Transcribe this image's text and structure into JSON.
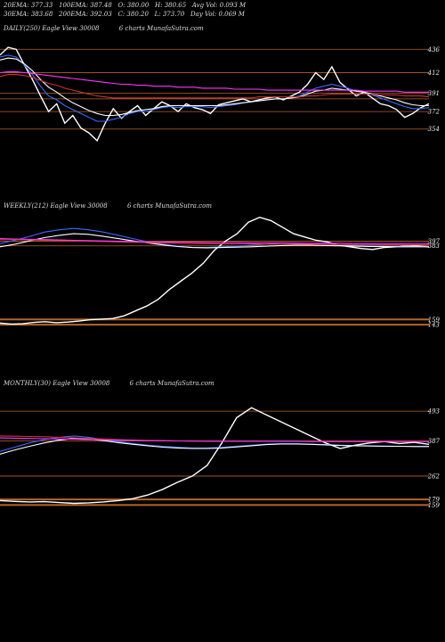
{
  "header": {
    "row1": [
      "20EMA: 377.33",
      "100EMA: 387.48",
      "O: 380.00",
      "H: 380.65",
      "Avg Vol: 0.093 M"
    ],
    "row2": [
      "30EMA: 383.68",
      "200EMA: 392.03",
      "C: 380.20",
      "L: 373.70",
      "Day Vol: 0.069 M"
    ]
  },
  "chart_data": [
    {
      "type": "line",
      "title": "DAILY(250) Eagle  View  30008",
      "watermark": "6  charts  MunafaSutra.com",
      "yticks": [
        436,
        412,
        391,
        372,
        354
      ],
      "ylim": [
        340,
        450
      ],
      "levels": [
        436,
        412,
        391,
        385,
        372,
        354
      ],
      "series": [
        {
          "color": "#ffffff",
          "values": [
            430,
            438,
            436,
            420,
            405,
            388,
            372,
            380,
            360,
            368,
            355,
            350,
            342,
            360,
            375,
            365,
            372,
            378,
            368,
            375,
            382,
            378,
            372,
            380,
            376,
            374,
            370,
            379,
            381,
            383,
            385,
            382,
            384,
            386,
            387,
            384,
            388,
            392,
            400,
            412,
            405,
            418,
            402,
            395,
            388,
            392,
            386,
            380,
            378,
            374,
            366,
            370,
            376,
            380
          ]
        },
        {
          "color": "#3a6bff",
          "values": [
            428,
            430,
            428,
            420,
            410,
            398,
            388,
            384,
            378,
            374,
            370,
            366,
            362,
            362,
            364,
            366,
            370,
            372,
            372,
            374,
            376,
            377,
            376,
            377,
            377,
            377,
            376,
            377,
            378,
            379,
            381,
            382,
            383,
            384,
            385,
            385,
            386,
            388,
            392,
            396,
            398,
            400,
            398,
            396,
            393,
            392,
            389,
            386,
            383,
            380,
            377,
            375,
            375,
            376
          ]
        },
        {
          "color": "#ffffff",
          "values": [
            425,
            427,
            426,
            421,
            414,
            405,
            397,
            392,
            386,
            381,
            377,
            373,
            370,
            368,
            368,
            369,
            371,
            373,
            374,
            375,
            377,
            378,
            378,
            378,
            378,
            378,
            378,
            378,
            379,
            380,
            381,
            382,
            383,
            384,
            385,
            385,
            386,
            387,
            390,
            393,
            394,
            396,
            395,
            394,
            393,
            392,
            390,
            388,
            386,
            384,
            381,
            379,
            378,
            378
          ]
        },
        {
          "color": "#cc3333",
          "values": [
            408,
            410,
            410,
            409,
            407,
            404,
            401,
            399,
            396,
            394,
            392,
            390,
            388,
            387,
            386,
            386,
            386,
            386,
            386,
            386,
            386,
            386,
            386,
            386,
            386,
            386,
            386,
            386,
            386,
            386,
            386,
            386,
            387,
            387,
            387,
            387,
            387,
            387,
            388,
            388,
            389,
            390,
            390,
            390,
            390,
            390,
            390,
            389,
            389,
            389,
            388,
            388,
            388,
            387
          ]
        },
        {
          "color": "#ff33ff",
          "values": [
            412,
            413,
            413,
            412,
            411,
            410,
            409,
            408,
            407,
            406,
            405,
            404,
            403,
            402,
            401,
            400,
            400,
            399,
            399,
            398,
            398,
            398,
            397,
            397,
            397,
            396,
            396,
            396,
            396,
            395,
            395,
            395,
            395,
            394,
            394,
            394,
            394,
            394,
            394,
            394,
            394,
            394,
            394,
            394,
            394,
            393,
            393,
            393,
            393,
            393,
            392,
            392,
            392,
            392
          ]
        }
      ]
    },
    {
      "type": "line",
      "title": "WEEKLY(212) Eagle  View  30008",
      "watermark": "6  charts  MunafaSutra.com",
      "yticks": [
        397,
        383,
        159,
        143
      ],
      "ylim": [
        100,
        480
      ],
      "levels": [
        397,
        383,
        159,
        143
      ],
      "series": [
        {
          "color": "#ffffff",
          "values": [
            148,
            145,
            146,
            150,
            152,
            149,
            151,
            154,
            158,
            160,
            162,
            170,
            185,
            200,
            220,
            250,
            275,
            300,
            330,
            370,
            398,
            420,
            455,
            470,
            460,
            440,
            420,
            410,
            400,
            395,
            385,
            380,
            375,
            372,
            378,
            380,
            385,
            383,
            380
          ]
        },
        {
          "color": "#3a6bff",
          "values": [
            390,
            400,
            412,
            425,
            432,
            436,
            432,
            425,
            415,
            405,
            395,
            388,
            382,
            378,
            378,
            380,
            382,
            385,
            388,
            392,
            392,
            390,
            388,
            386,
            384,
            383,
            382,
            382,
            381,
            381
          ]
        },
        {
          "color": "#ffffff",
          "values": [
            380,
            388,
            398,
            408,
            415,
            420,
            418,
            412,
            405,
            398,
            392,
            386,
            381,
            378,
            377,
            378,
            379,
            380,
            382,
            384,
            385,
            385,
            384,
            383,
            382,
            381,
            381,
            380,
            380,
            380
          ]
        },
        {
          "color": "#cc3333",
          "values": [
            402,
            402,
            401,
            400,
            399,
            398,
            397,
            396,
            395,
            394,
            393,
            392,
            391,
            390,
            390,
            389,
            389,
            389,
            388,
            388,
            388,
            388,
            387,
            387,
            387,
            387,
            386,
            386,
            386,
            386
          ]
        },
        {
          "color": "#ff33ff",
          "values": [
            405,
            404,
            403,
            402,
            401,
            400,
            399,
            398,
            397,
            396,
            395,
            395,
            394,
            394,
            393,
            393,
            393,
            392,
            392,
            392,
            391,
            391,
            391,
            391,
            390,
            390,
            390,
            390,
            390,
            390
          ]
        }
      ]
    },
    {
      "type": "line",
      "title": "MONTHLY(30) Eagle  View  30008",
      "watermark": "6  charts  MunafaSutra.com",
      "yticks": [
        493,
        387,
        262,
        179,
        159
      ],
      "ylim": [
        100,
        560
      ],
      "levels": [
        493,
        387,
        262,
        179,
        159
      ],
      "series": [
        {
          "color": "#ffffff",
          "values": [
            175,
            172,
            170,
            171,
            168,
            165,
            167,
            170,
            175,
            182,
            195,
            215,
            240,
            262,
            300,
            380,
            470,
            505,
            480,
            455,
            430,
            405,
            380,
            360,
            372,
            380,
            385,
            378,
            382,
            375
          ]
        },
        {
          "color": "#3a6bff",
          "values": [
            350,
            365,
            380,
            392,
            400,
            405,
            400,
            392,
            385,
            378,
            372,
            368,
            365,
            362,
            362,
            364,
            368,
            372,
            376,
            378,
            378,
            376,
            374,
            372,
            370,
            370,
            369,
            368,
            368,
            368
          ]
        },
        {
          "color": "#ffffff",
          "values": [
            340,
            355,
            368,
            380,
            390,
            396,
            394,
            388,
            381,
            375,
            370,
            365,
            362,
            360,
            360,
            362,
            366,
            370,
            374,
            376,
            376,
            375,
            373,
            371,
            370,
            369,
            368,
            368,
            367,
            367
          ]
        },
        {
          "color": "#cc3333",
          "values": [
            405,
            404,
            403,
            402,
            400,
            398,
            396,
            394,
            392,
            390,
            389,
            388,
            387,
            386,
            386,
            386,
            386,
            386,
            386,
            386,
            386,
            386,
            386,
            386,
            386,
            386,
            386,
            386,
            386,
            386
          ]
        },
        {
          "color": "#ff33ff",
          "values": [
            398,
            397,
            396,
            395,
            394,
            393,
            392,
            391,
            390,
            389,
            388,
            388,
            387,
            387,
            386,
            386,
            386,
            386,
            386,
            386,
            386,
            385,
            385,
            385,
            385,
            385,
            385,
            385,
            385,
            385
          ]
        }
      ]
    }
  ]
}
